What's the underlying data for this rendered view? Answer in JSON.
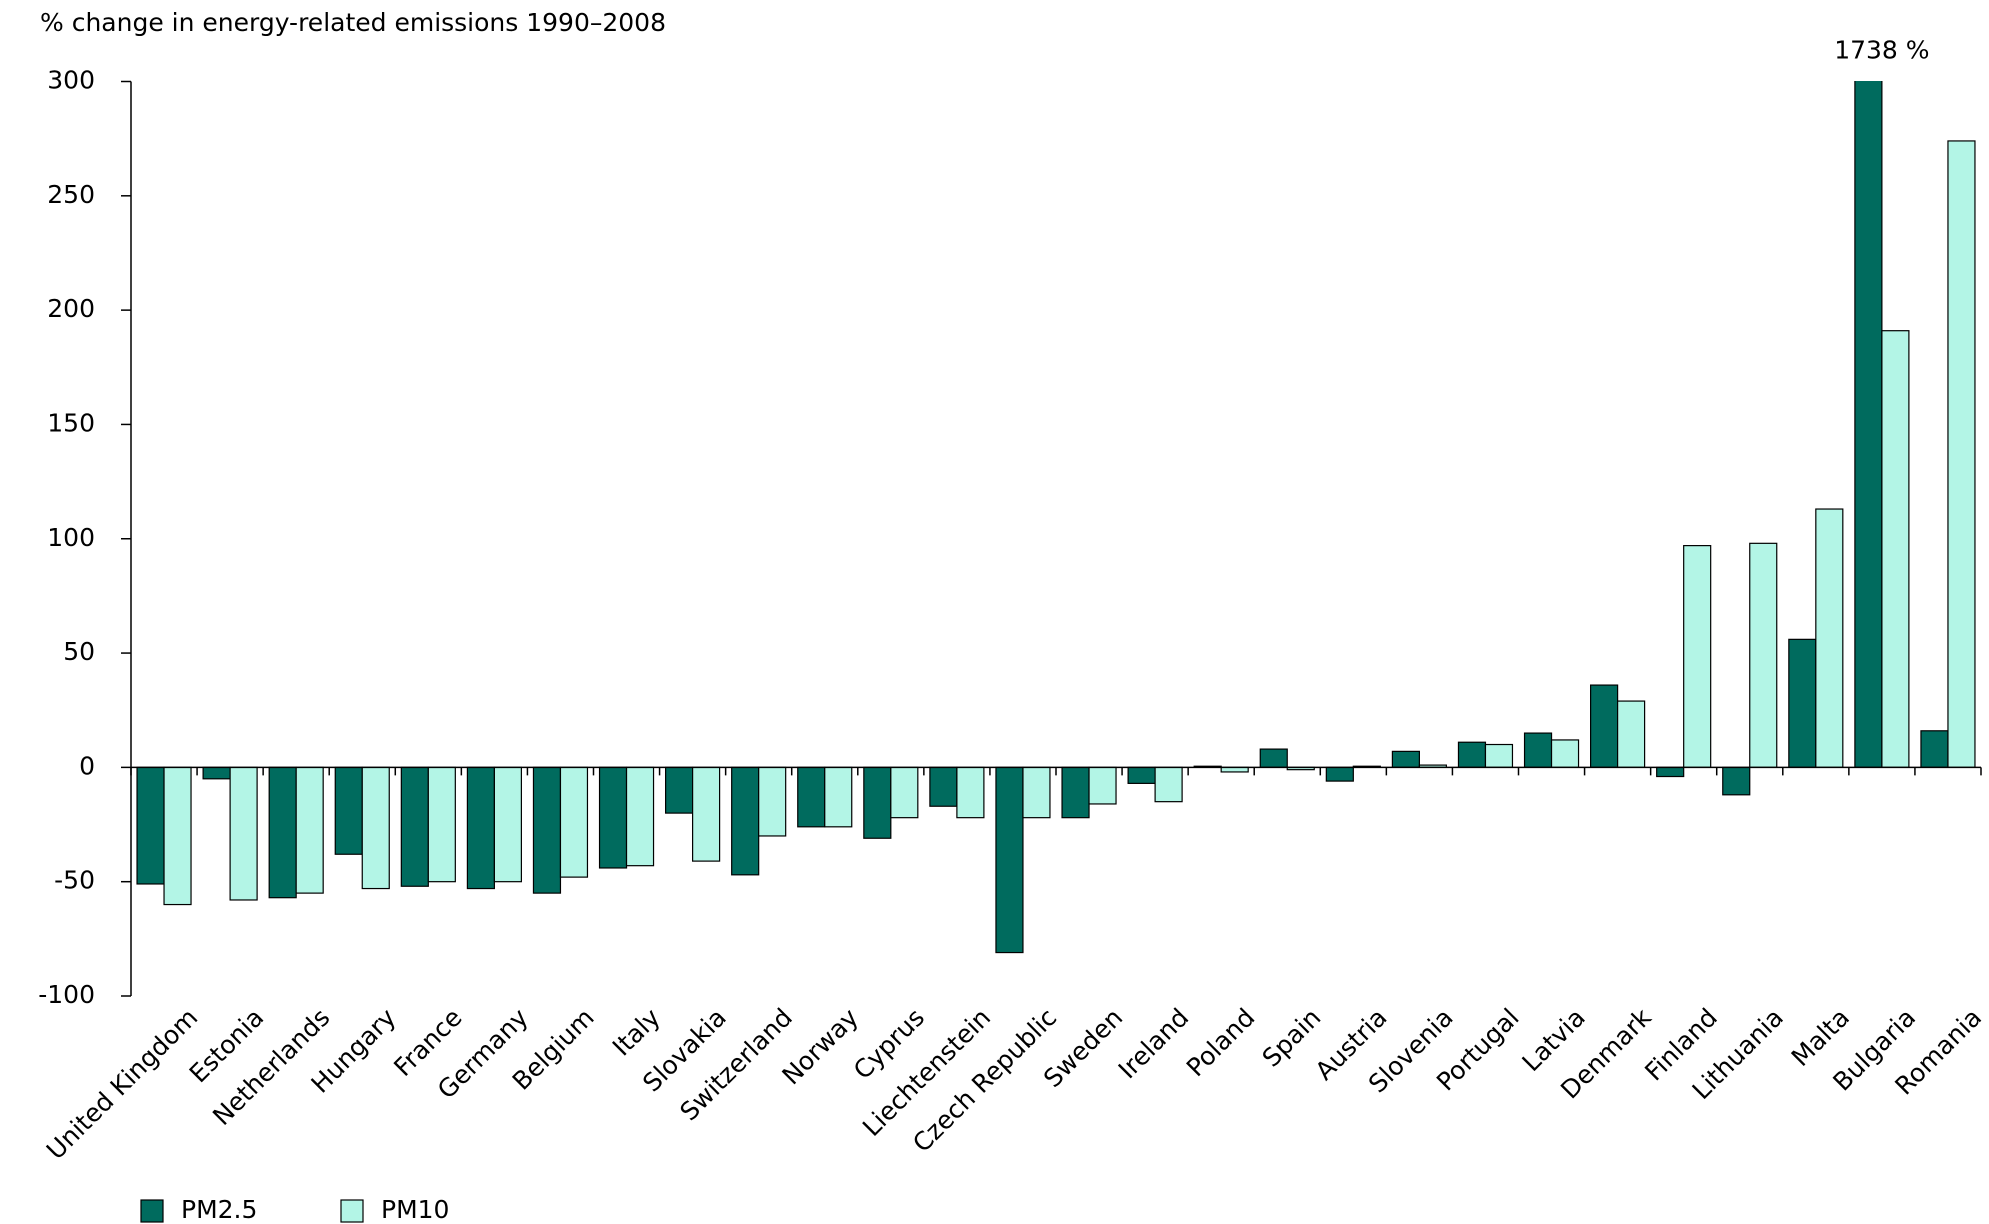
{
  "chart_data": {
    "type": "bar",
    "ylabel": "% change in energy-related emissions 1990–2008",
    "categories": [
      "United Kingdom",
      "Estonia",
      "Netherlands",
      "Hungary",
      "France",
      "Germany",
      "Belgium",
      "Italy",
      "Slovakia",
      "Switzerland",
      "Norway",
      "Cyprus",
      "Liechtenstein",
      "Czech Republic",
      "Sweden",
      "Ireland",
      "Poland",
      "Spain",
      "Austria",
      "Slovenia",
      "Portugal",
      "Latvia",
      "Denmark",
      "Finland",
      "Lithuania",
      "Malta",
      "Bulgaria",
      "Romania"
    ],
    "series": [
      {
        "name": "PM2.5",
        "color": "#006b5e",
        "values": [
          -51,
          -5,
          -57,
          -38,
          -52,
          -53,
          -55,
          -44,
          -20,
          -47,
          -26,
          -31,
          -17,
          -81,
          -22,
          -7,
          0.5,
          8,
          -6,
          7,
          11,
          15,
          36,
          -4,
          -12,
          56,
          1738,
          16
        ],
        "value_labels": [
          null,
          null,
          null,
          null,
          null,
          null,
          null,
          null,
          null,
          null,
          null,
          null,
          null,
          null,
          null,
          null,
          null,
          null,
          null,
          null,
          null,
          null,
          null,
          null,
          null,
          null,
          "1738 %",
          null
        ]
      },
      {
        "name": "PM10",
        "color": "#b3f5e6",
        "values": [
          -60,
          -58,
          -55,
          -53,
          -50,
          -50,
          -48,
          -43,
          -41,
          -30,
          -26,
          -22,
          -22,
          -22,
          -16,
          -15,
          -2,
          -1,
          0.5,
          1,
          10,
          12,
          29,
          97,
          98,
          113,
          191,
          274
        ]
      }
    ],
    "ylim": [
      -100,
      300
    ],
    "yticks": [
      -100,
      -50,
      0,
      50,
      100,
      150,
      200,
      250,
      300
    ],
    "grid": false
  }
}
